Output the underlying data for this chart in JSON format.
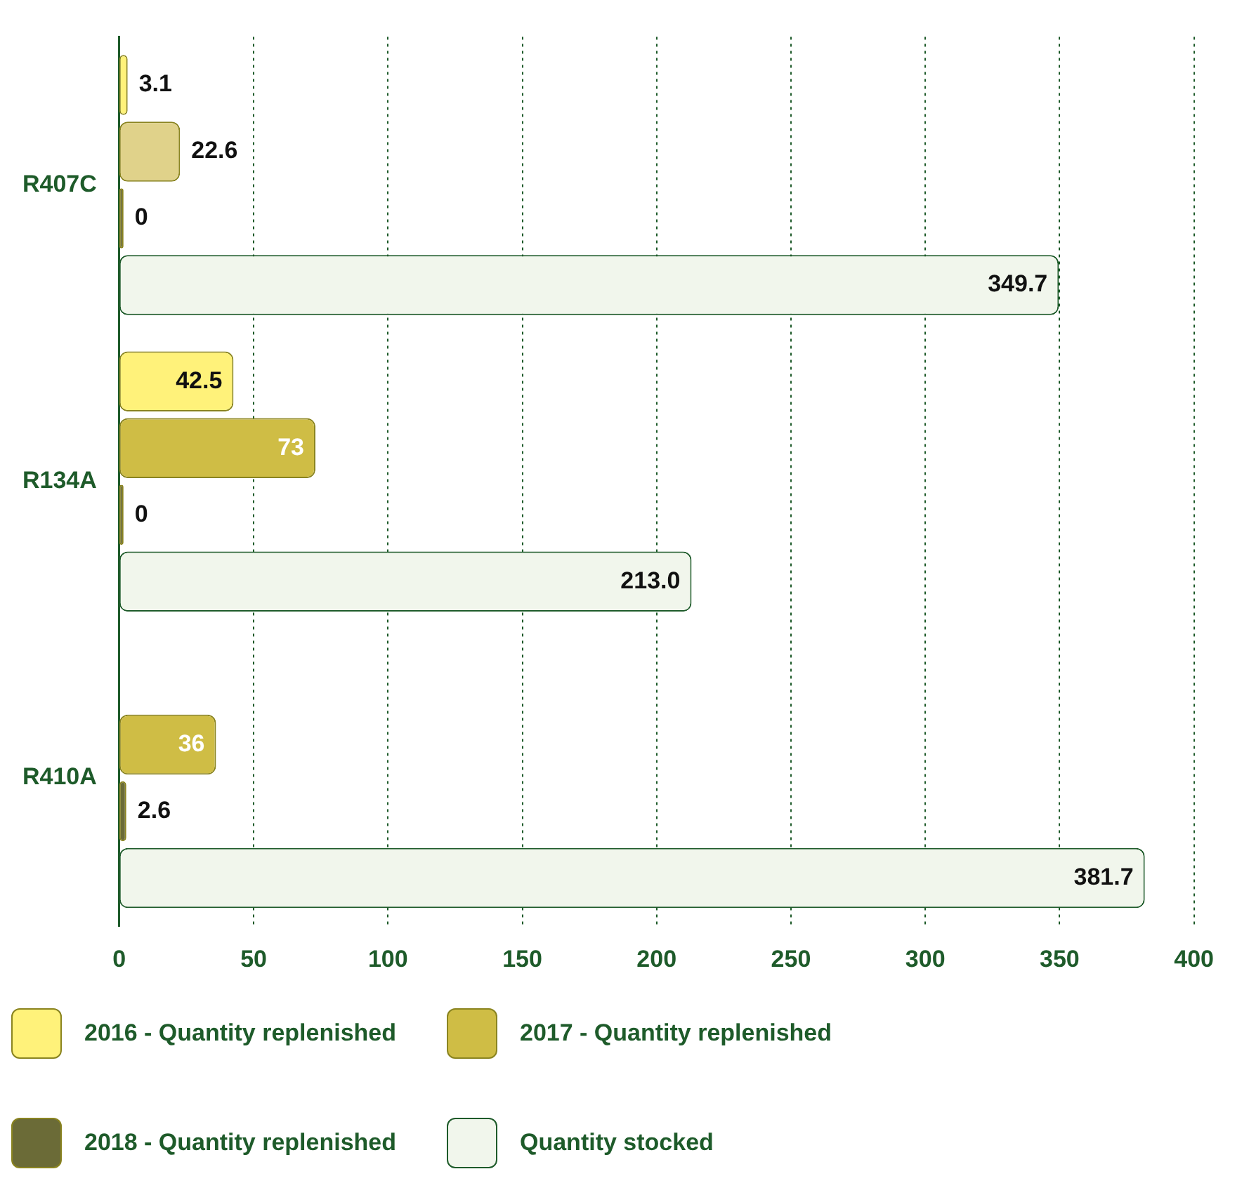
{
  "chart_data": {
    "type": "bar",
    "orientation": "horizontal",
    "categories": [
      "R407C",
      "R134A",
      "R410A"
    ],
    "series": [
      {
        "name": "2016 - Quantity replenished",
        "color": "#fff27a",
        "values": [
          3.1,
          42.5,
          null
        ],
        "value_labels": [
          "3.1",
          "42.5",
          null
        ]
      },
      {
        "name": "2017 - Quantity replenished",
        "color": "#cfbd45",
        "colors": [
          "#e0d28a",
          "#cfbd45",
          "#cfbd45"
        ],
        "values": [
          22.6,
          73,
          36
        ],
        "value_labels": [
          "22.6",
          "73",
          "36"
        ]
      },
      {
        "name": "2018  - Quantity replenished",
        "color": "#6b6b37",
        "values": [
          0,
          0,
          2.6
        ],
        "value_labels": [
          "0",
          "0",
          "2.6"
        ]
      },
      {
        "name": "Quantity stocked",
        "color": "#f1f6ec",
        "values": [
          349.7,
          213.0,
          381.7
        ],
        "value_labels": [
          "349.7",
          "213.0",
          "381.7"
        ]
      }
    ],
    "xlim": [
      0,
      400
    ],
    "xticks": [
      0,
      50,
      100,
      150,
      200,
      250,
      300,
      350,
      400
    ],
    "grid": "x",
    "legend": "bottom"
  }
}
